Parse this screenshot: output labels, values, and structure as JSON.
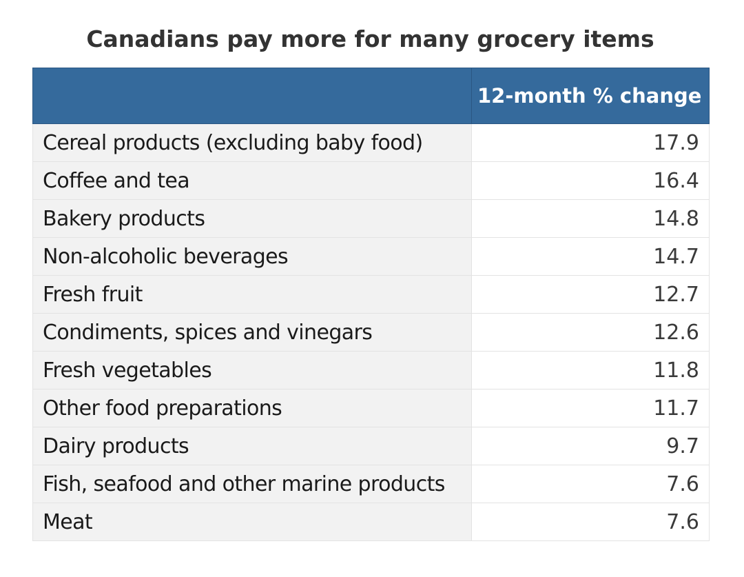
{
  "chart_data": {
    "type": "table",
    "title": "Canadians pay more for many grocery items",
    "columns": [
      "",
      "12-month % change"
    ],
    "rows": [
      {
        "label": "Cereal products (excluding baby food)",
        "value": "17.9"
      },
      {
        "label": "Coffee and tea",
        "value": "16.4"
      },
      {
        "label": "Bakery products",
        "value": "14.8"
      },
      {
        "label": "Non-alcoholic beverages",
        "value": "14.7"
      },
      {
        "label": "Fresh fruit",
        "value": "12.7"
      },
      {
        "label": "Condiments, spices and vinegars",
        "value": "12.6"
      },
      {
        "label": "Fresh vegetables",
        "value": "11.8"
      },
      {
        "label": "Other food preparations",
        "value": "11.7"
      },
      {
        "label": "Dairy products",
        "value": "9.7"
      },
      {
        "label": "Fish, seafood and other marine products",
        "value": "7.6"
      },
      {
        "label": "Meat",
        "value": "7.6"
      }
    ],
    "colors": {
      "header_background": "#356a9c",
      "header_text": "#ffffff",
      "label_cell_background": "#f2f2f2",
      "value_cell_background": "#ffffff"
    }
  }
}
